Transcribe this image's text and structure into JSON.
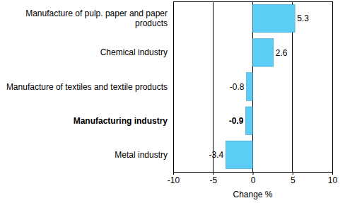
{
  "chart_data": {
    "type": "bar",
    "orientation": "horizontal",
    "categories": [
      "Manufacture of pulp. paper and paper products",
      "Chemical industry",
      "Manufacture of textiles and textile products",
      "Manufacturing industry",
      "Metal industry"
    ],
    "values": [
      5.3,
      2.6,
      -0.8,
      -0.9,
      -3.4
    ],
    "color": "#5ccdf5",
    "xlabel": "Change %",
    "xlim": [
      -10,
      10
    ],
    "xticks": [
      -10,
      -5,
      0,
      5,
      10
    ],
    "grid": true,
    "data_labels": true
  }
}
